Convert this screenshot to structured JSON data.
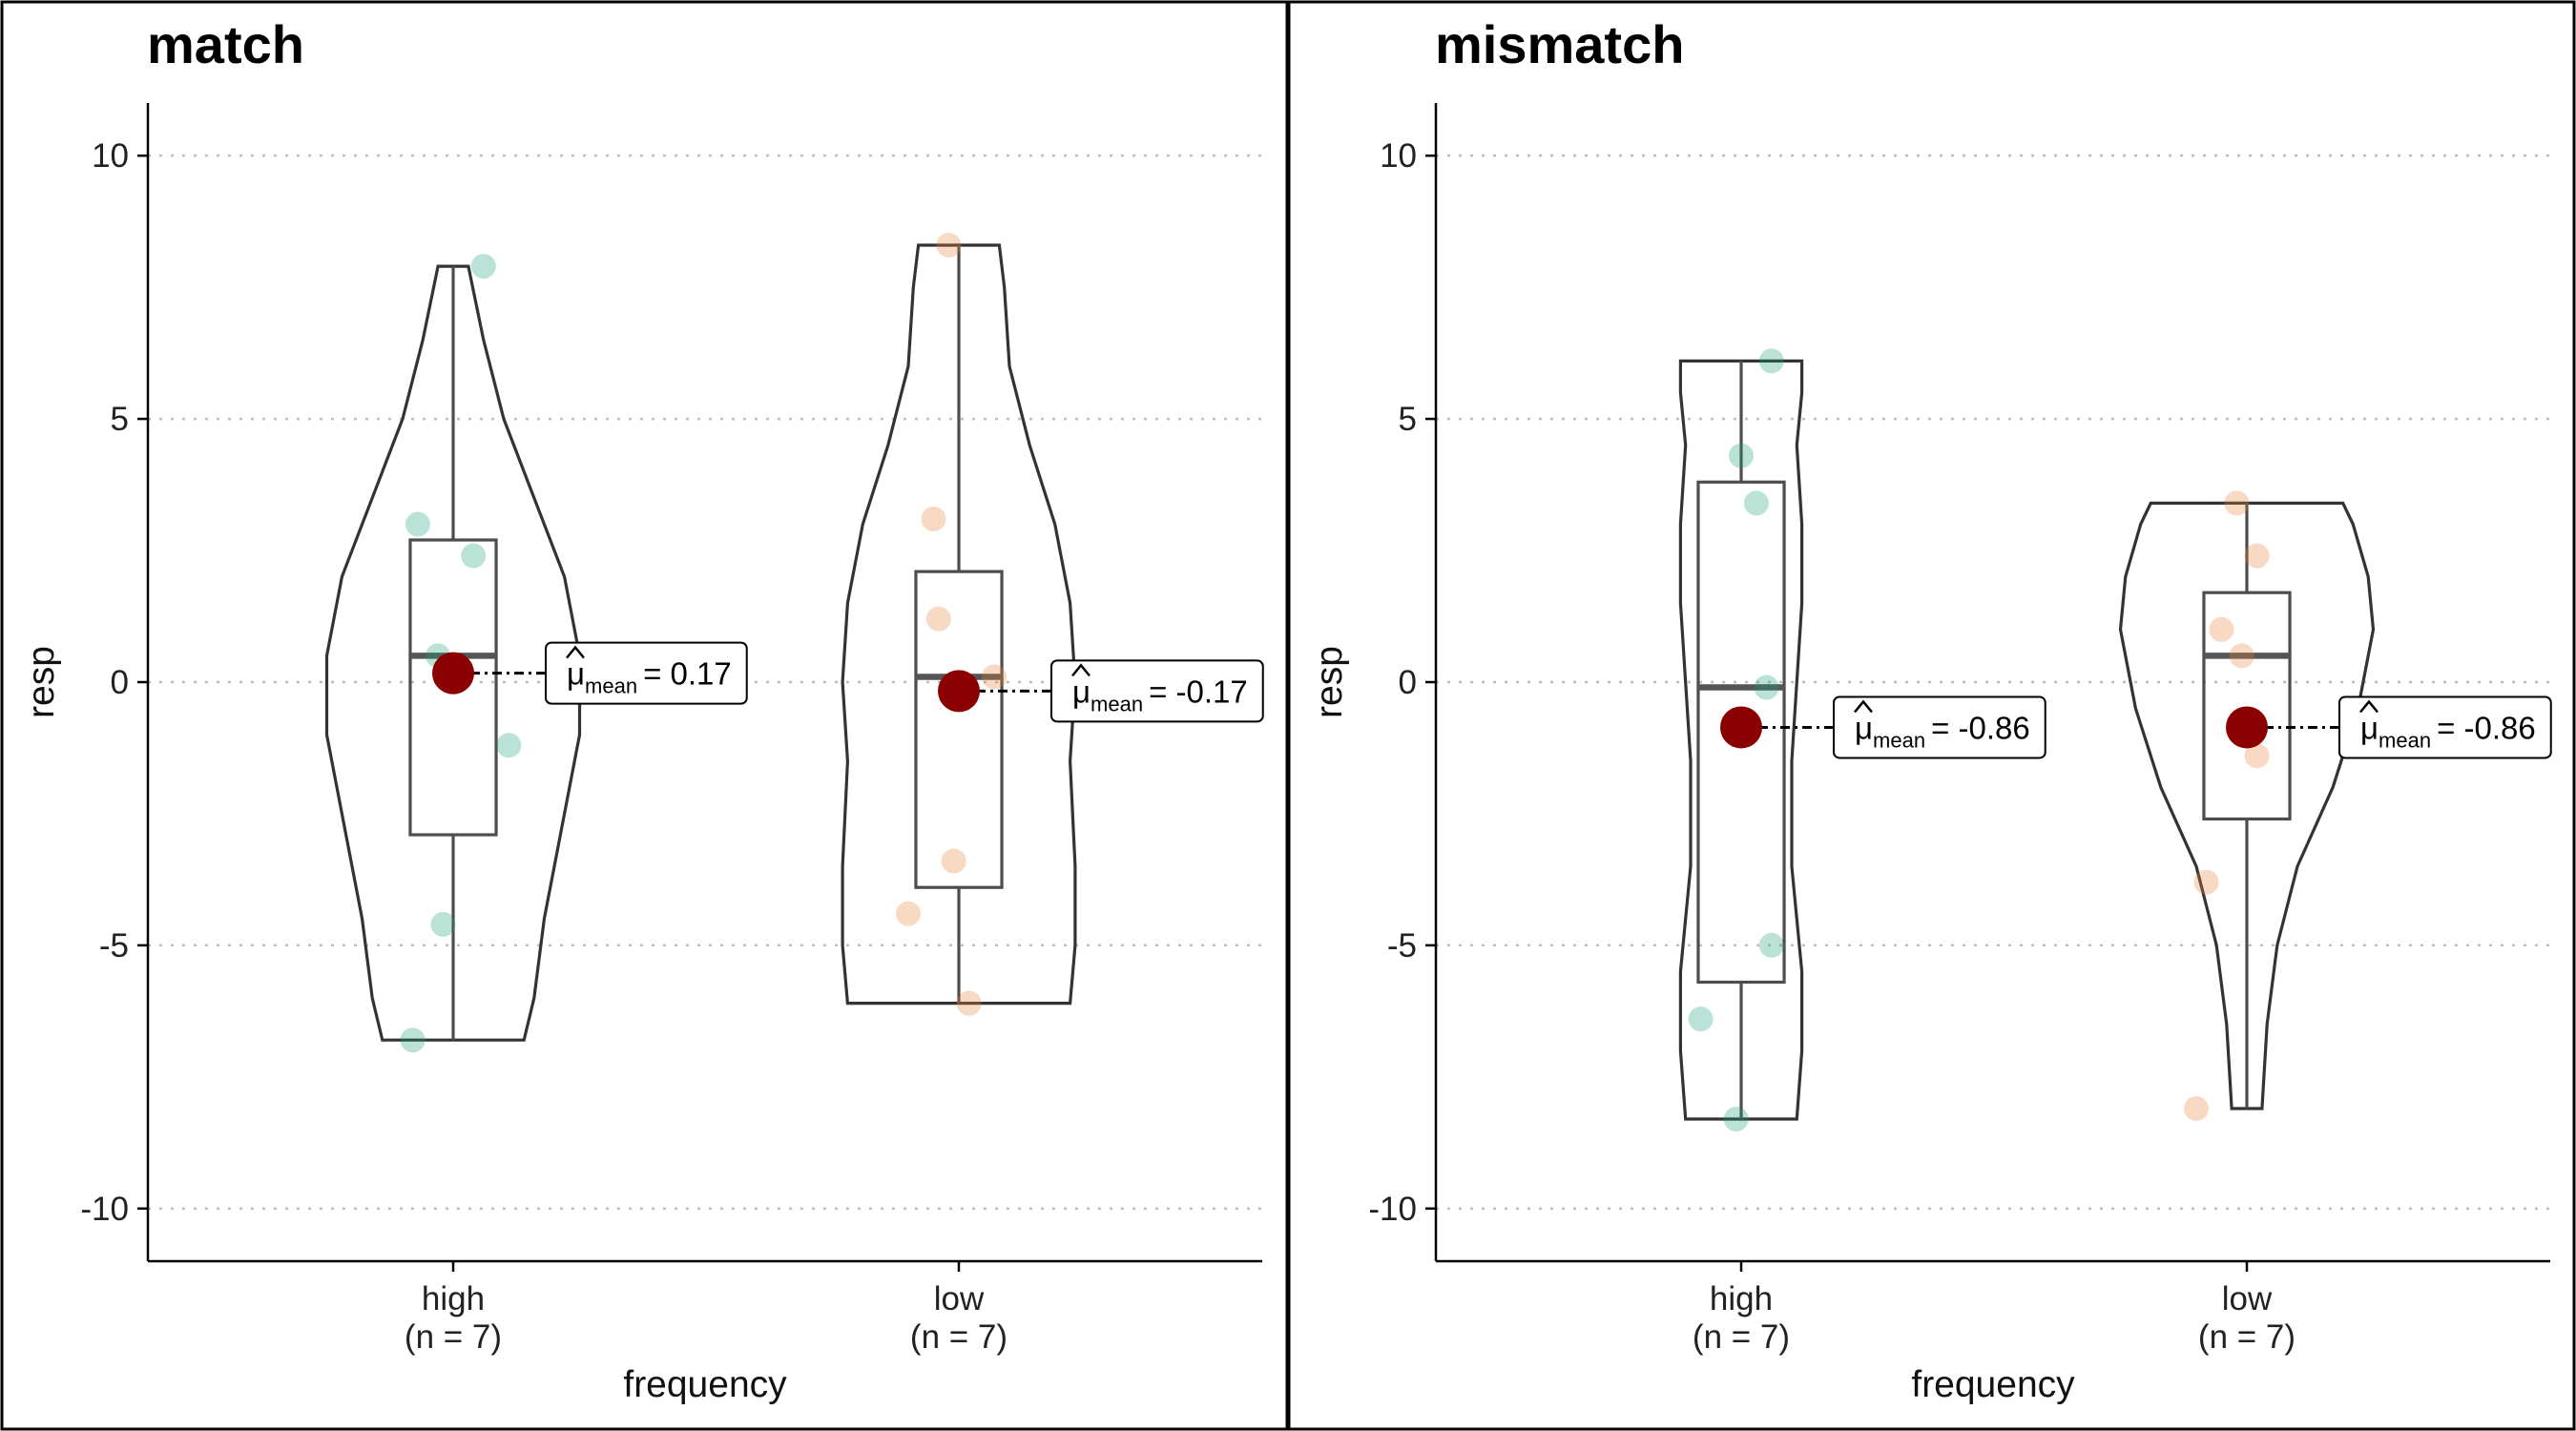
{
  "chart_data": [
    {
      "type": "violin",
      "title": "match",
      "xlabel": "frequency",
      "ylabel": "resp",
      "ylim": [
        -11,
        11
      ],
      "yticks": [
        "-10",
        "-5",
        "0",
        "5",
        "10"
      ],
      "grid": "horizontal dotted",
      "groups": [
        {
          "name": "high",
          "label_line1": "high",
          "label_line2": "(n = 7)",
          "color": "#1b9e77",
          "points": [
            {
              "x": 0.06,
              "y": 7.9
            },
            {
              "x": -0.07,
              "y": 3.0
            },
            {
              "x": 0.04,
              "y": 2.4
            },
            {
              "x": -0.03,
              "y": 0.5
            },
            {
              "x": 0.11,
              "y": -1.2
            },
            {
              "x": -0.02,
              "y": -4.6
            },
            {
              "x": -0.08,
              "y": -6.8
            }
          ],
          "box": {
            "q1": -2.9,
            "median": 0.5,
            "q3": 2.7,
            "whisker_low": -6.8,
            "whisker_high": 7.9
          },
          "violin": [
            [
              -6.8,
              0.14
            ],
            [
              -6.0,
              0.16
            ],
            [
              -4.5,
              0.18
            ],
            [
              -2.5,
              0.22
            ],
            [
              -1.0,
              0.25
            ],
            [
              0.5,
              0.25
            ],
            [
              2.0,
              0.22
            ],
            [
              3.5,
              0.16
            ],
            [
              5.0,
              0.1
            ],
            [
              6.5,
              0.06
            ],
            [
              7.9,
              0.03
            ]
          ],
          "mean": 0.17,
          "mean_label_main": "= 0.17"
        },
        {
          "name": "low",
          "label_line1": "low",
          "label_line2": "(n = 7)",
          "color": "#e6813a",
          "points": [
            {
              "x": -0.02,
              "y": 8.3
            },
            {
              "x": -0.05,
              "y": 3.1
            },
            {
              "x": -0.04,
              "y": 1.2
            },
            {
              "x": 0.07,
              "y": 0.1
            },
            {
              "x": -0.01,
              "y": -3.4
            },
            {
              "x": -0.1,
              "y": -4.4
            },
            {
              "x": 0.02,
              "y": -6.1
            }
          ],
          "box": {
            "q1": -3.9,
            "median": 0.1,
            "q3": 2.1,
            "whisker_low": -6.1,
            "whisker_high": 8.3
          },
          "violin": [
            [
              -6.1,
              0.22
            ],
            [
              -5.0,
              0.23
            ],
            [
              -3.5,
              0.23
            ],
            [
              -1.5,
              0.22
            ],
            [
              0.0,
              0.23
            ],
            [
              1.5,
              0.22
            ],
            [
              3.0,
              0.19
            ],
            [
              4.5,
              0.14
            ],
            [
              6.0,
              0.1
            ],
            [
              7.5,
              0.09
            ],
            [
              8.3,
              0.08
            ]
          ],
          "mean": -0.17,
          "mean_label_main": "= -0.17"
        }
      ]
    },
    {
      "type": "violin",
      "title": "mismatch",
      "xlabel": "frequency",
      "ylabel": "resp",
      "ylim": [
        -11,
        11
      ],
      "yticks": [
        "-10",
        "-5",
        "0",
        "5",
        "10"
      ],
      "grid": "horizontal dotted",
      "groups": [
        {
          "name": "high",
          "label_line1": "high",
          "label_line2": "(n = 7)",
          "color": "#1b9e77",
          "points": [
            {
              "x": 0.06,
              "y": 6.1
            },
            {
              "x": 0.0,
              "y": 4.3
            },
            {
              "x": 0.03,
              "y": 3.4
            },
            {
              "x": 0.05,
              "y": -0.1
            },
            {
              "x": 0.06,
              "y": -5.0
            },
            {
              "x": -0.08,
              "y": -6.4
            },
            {
              "x": -0.01,
              "y": -8.3
            }
          ],
          "box": {
            "q1": -5.7,
            "median": -0.1,
            "q3": 3.8,
            "whisker_low": -8.3,
            "whisker_high": 6.1
          },
          "violin": [
            [
              -8.3,
              0.11
            ],
            [
              -7.0,
              0.12
            ],
            [
              -5.5,
              0.12
            ],
            [
              -3.5,
              0.1
            ],
            [
              -1.5,
              0.1
            ],
            [
              0.0,
              0.11
            ],
            [
              1.5,
              0.12
            ],
            [
              3.0,
              0.12
            ],
            [
              4.5,
              0.11
            ],
            [
              5.5,
              0.12
            ],
            [
              6.1,
              0.12
            ]
          ],
          "mean": -0.86,
          "mean_label_main": "= -0.86"
        },
        {
          "name": "low",
          "label_line1": "low",
          "label_line2": "(n = 7)",
          "color": "#e6813a",
          "points": [
            {
              "x": -0.02,
              "y": 3.4
            },
            {
              "x": 0.02,
              "y": 2.4
            },
            {
              "x": -0.05,
              "y": 1.0
            },
            {
              "x": -0.01,
              "y": 0.5
            },
            {
              "x": 0.02,
              "y": -1.4
            },
            {
              "x": -0.08,
              "y": -3.8
            },
            {
              "x": -0.1,
              "y": -8.1
            }
          ],
          "box": {
            "q1": -2.6,
            "median": 0.5,
            "q3": 1.7,
            "whisker_low": -8.1,
            "whisker_high": 3.4
          },
          "violin": [
            [
              -8.1,
              0.03
            ],
            [
              -6.5,
              0.04
            ],
            [
              -5.0,
              0.06
            ],
            [
              -3.5,
              0.1
            ],
            [
              -2.0,
              0.17
            ],
            [
              -0.5,
              0.22
            ],
            [
              1.0,
              0.25
            ],
            [
              2.0,
              0.24
            ],
            [
              3.0,
              0.21
            ],
            [
              3.4,
              0.19
            ]
          ],
          "mean": -0.86,
          "mean_label_main": "= -0.86"
        }
      ]
    }
  ],
  "mean_label_symbol": "μ",
  "mean_label_subscript": "mean"
}
